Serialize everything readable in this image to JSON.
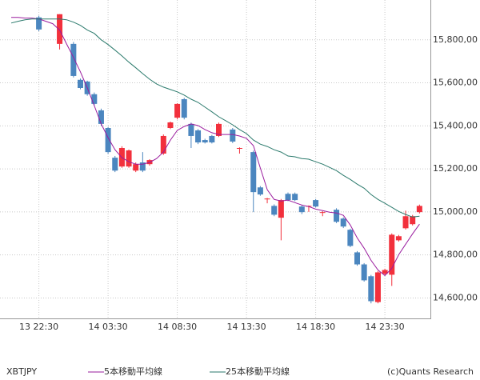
{
  "chart_data": {
    "type": "candlestick",
    "symbol": "XBTJPY",
    "credit": "(c)Quants Research",
    "categories": [
      null,
      null,
      null,
      null,
      "13 22:30",
      null,
      null,
      null,
      null,
      null,
      null,
      null,
      null,
      null,
      "14 03:30",
      null,
      null,
      null,
      null,
      null,
      null,
      null,
      null,
      null,
      "14 08:30",
      null,
      null,
      null,
      null,
      null,
      null,
      null,
      null,
      null,
      "14 13:30",
      null,
      null,
      null,
      null,
      null,
      null,
      null,
      null,
      null,
      "14 18:30",
      null,
      null,
      null,
      null,
      null,
      null,
      null,
      null,
      null,
      "14 23:30",
      null,
      null,
      null,
      null,
      null
    ],
    "open": [
      null,
      null,
      null,
      null,
      15904,
      null,
      null,
      15781,
      null,
      15781,
      15614,
      15606,
      15547,
      15472,
      15390,
      15252,
      15211,
      15211,
      15192,
      15230,
      15222,
      null,
      15271,
      15390,
      15438,
      15524,
      15409,
      15379,
      15334,
      15353,
      15353,
      null,
      15383,
      15294,
      null,
      15278,
      15114,
      15060,
      15028,
      14973,
      15084,
      15084,
      15025,
      15025,
      15055,
      14997,
      null,
      15010,
      14969,
      14917,
      14812,
      14756,
      14701,
      14581,
      14712,
      14708,
      14868,
      14924,
      14943,
      14999
    ],
    "high": [
      null,
      null,
      null,
      null,
      15912,
      null,
      null,
      15919,
      null,
      15790,
      15620,
      15610,
      15555,
      15480,
      15395,
      15260,
      15305,
      15290,
      15230,
      15278,
      15245,
      null,
      15360,
      15420,
      15505,
      15530,
      15415,
      15385,
      15340,
      15358,
      15415,
      null,
      15390,
      15300,
      null,
      15285,
      15120,
      15065,
      15035,
      15060,
      15090,
      15090,
      15030,
      15030,
      15060,
      15003,
      null,
      15017,
      14975,
      14922,
      14818,
      14762,
      14707,
      14725,
      14736,
      14900,
      14893,
      15006,
      14986,
      15034
    ],
    "low": [
      null,
      null,
      null,
      null,
      15840,
      null,
      null,
      15755,
      null,
      15625,
      15570,
      15540,
      15495,
      15400,
      15270,
      15185,
      15205,
      15205,
      15185,
      15185,
      15215,
      null,
      15265,
      15385,
      15430,
      15430,
      15297,
      15315,
      15318,
      15318,
      15348,
      null,
      15320,
      15271,
      null,
      14999,
      15075,
      15040,
      14980,
      14868,
      15050,
      15050,
      14990,
      15000,
      15020,
      14980,
      null,
      14948,
      14925,
      14836,
      14750,
      14676,
      14575,
      14575,
      14706,
      14656,
      14862,
      14918,
      14937,
      14993
    ],
    "close": [
      null,
      null,
      null,
      null,
      15848,
      null,
      null,
      15919,
      null,
      15632,
      15576,
      15547,
      15502,
      15409,
      15278,
      15192,
      15297,
      15286,
      15222,
      15192,
      15241,
      null,
      15353,
      15416,
      15502,
      15438,
      15353,
      15323,
      15323,
      15323,
      15409,
      null,
      15327,
      15297,
      null,
      15092,
      15081,
      15062,
      14987,
      15055,
      15055,
      15055,
      14999,
      15028,
      15025,
      14999,
      null,
      14954,
      14932,
      14842,
      14756,
      14682,
      14585,
      14719,
      14730,
      14894,
      14887,
      14980,
      14980,
      15028
    ],
    "up_color": "#f2303c",
    "down_color": "#4b86bf",
    "series": [
      {
        "name": "5本移動平均線",
        "color": "#9a1c9e",
        "values": [
          15904,
          15904,
          15901,
          15901,
          15897,
          15886,
          15875,
          15845,
          15781,
          15718,
          15651,
          15576,
          15494,
          15409,
          15345,
          15289,
          15252,
          15233,
          15222,
          15222,
          15230,
          15248,
          15278,
          15334,
          15379,
          15397,
          15409,
          15401,
          15383,
          15368,
          15360,
          15360,
          15360,
          15353,
          15342,
          15308,
          15204,
          15103,
          15058,
          15051,
          15055,
          15043,
          15032,
          15025,
          15013,
          15006,
          14999,
          14995,
          14984,
          14939,
          14879,
          14831,
          14775,
          14730,
          14704,
          14738,
          14801,
          14850,
          14898,
          14943
        ]
      },
      {
        "name": "25本移動平均線",
        "color": "#2b7a6c",
        "values": [
          15878,
          15886,
          15893,
          15897,
          15897,
          15897,
          15897,
          15897,
          15893,
          15882,
          15867,
          15845,
          15830,
          15800,
          15778,
          15752,
          15725,
          15696,
          15670,
          15643,
          15617,
          15595,
          15580,
          15569,
          15558,
          15543,
          15524,
          15509,
          15487,
          15465,
          15442,
          15424,
          15405,
          15383,
          15364,
          15334,
          15315,
          15304,
          15289,
          15278,
          15260,
          15256,
          15248,
          15245,
          15233,
          15222,
          15207,
          15192,
          15170,
          15151,
          15129,
          15110,
          15081,
          15058,
          15040,
          15021,
          15002,
          14988,
          14976,
          14980
        ]
      }
    ],
    "ylim": [
      14505,
      15985
    ],
    "yticks": [
      {
        "value": 14600,
        "label": "14,600,00"
      },
      {
        "value": 14800,
        "label": "14,800,00"
      },
      {
        "value": 15000,
        "label": "15,000,00"
      },
      {
        "value": 15200,
        "label": "15,200,00"
      },
      {
        "value": 15400,
        "label": "15,400,00"
      },
      {
        "value": 15600,
        "label": "15,600,00"
      },
      {
        "value": 15800,
        "label": "15,800,00"
      }
    ],
    "grid": true
  }
}
